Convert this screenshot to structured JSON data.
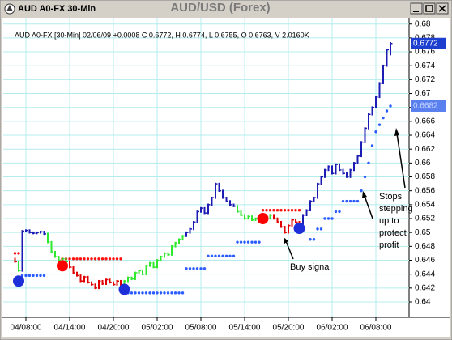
{
  "window_title": "AUD A0-FX 30-Min",
  "chart_data": {
    "type": "ohlc",
    "title": "AUD/USD (Forex)",
    "info": "AUD A0-FX [30-Min] 02/06/09 +0.0008 C 0.6772, H 0.6774, L 0.6755, O 0.6763, V 2.0160K",
    "categories": [
      null,
      null,
      null,
      "04/08:00",
      null,
      null,
      null,
      null,
      null,
      null,
      null,
      null,
      null,
      null,
      null,
      "04/14:00",
      null,
      null,
      null,
      null,
      null,
      null,
      null,
      null,
      null,
      null,
      null,
      "04/20:00",
      null,
      null,
      null,
      null,
      null,
      null,
      null,
      null,
      null,
      null,
      null,
      "05/02:00",
      null,
      null,
      null,
      null,
      null,
      null,
      null,
      null,
      null,
      null,
      null,
      "05/08:00",
      null,
      null,
      null,
      null,
      null,
      null,
      null,
      null,
      null,
      null,
      null,
      "05/14:00",
      null,
      null,
      null,
      null,
      null,
      null,
      null,
      null,
      null,
      null,
      null,
      "05/20:00",
      null,
      null,
      null,
      null,
      null,
      null,
      null,
      null,
      null,
      null,
      null,
      "06/02:00",
      null,
      null,
      null,
      null,
      null,
      null,
      null,
      null,
      null,
      null,
      null,
      "06/08:00",
      null,
      null,
      null,
      null
    ],
    "high": [
      0.64635,
      0.64595,
      0.65035,
      0.65045,
      0.65045,
      0.65015,
      0.65015,
      0.65025,
      0.65025,
      0.64995,
      0.64875,
      0.64735,
      0.64665,
      0.64635,
      0.64635,
      0.64595,
      0.64515,
      0.64435,
      0.64395,
      0.64375,
      0.64375,
      0.64295,
      0.64265,
      0.64315,
      0.64315,
      0.64335,
      0.64335,
      0.64295,
      0.64315,
      0.64315,
      0.64315,
      0.64365,
      0.64365,
      0.64435,
      0.64465,
      0.64465,
      0.64535,
      0.64575,
      0.64575,
      0.64615,
      0.64665,
      0.64715,
      0.64715,
      0.64815,
      0.64865,
      0.64915,
      0.64965,
      0.65015,
      0.65065,
      0.65165,
      0.65315,
      0.65365,
      0.65365,
      0.65415,
      0.65515,
      0.65715,
      0.65715,
      0.65615,
      0.65515,
      0.65465,
      0.65415,
      0.65395,
      0.65315,
      0.65265,
      0.65245,
      0.65245,
      0.65215,
      0.65215,
      0.65195,
      0.65215,
      0.65265,
      0.65265,
      0.65215,
      0.65165,
      0.65095,
      0.65115,
      0.65195,
      0.65195,
      0.65165,
      0.65265,
      0.65335,
      0.65465,
      0.65515,
      0.65715,
      0.65815,
      0.65915,
      0.65965,
      0.65965,
      0.65995,
      0.65995,
      0.65915,
      0.65865,
      0.65915,
      0.66015,
      0.66115,
      0.66315,
      0.66515,
      0.66715,
      0.66815,
      0.66965,
      0.67165,
      0.67415,
      0.67645,
      0.6774
    ],
    "low": [
      0.64565,
      0.64435,
      0.64435,
      0.65005,
      0.64985,
      0.64975,
      0.64975,
      0.64985,
      0.64965,
      0.64845,
      0.64705,
      0.64635,
      0.64585,
      0.64585,
      0.64565,
      0.64485,
      0.64405,
      0.64365,
      0.64285,
      0.64285,
      0.64265,
      0.64235,
      0.64185,
      0.64185,
      0.64245,
      0.64245,
      0.64265,
      0.64235,
      0.64235,
      0.64205,
      0.64205,
      0.64285,
      0.64315,
      0.64315,
      0.64405,
      0.64385,
      0.64385,
      0.64505,
      0.64485,
      0.64485,
      0.64585,
      0.64635,
      0.64665,
      0.64665,
      0.64785,
      0.64835,
      0.64885,
      0.64935,
      0.64985,
      0.65035,
      0.65135,
      0.65285,
      0.65265,
      0.65265,
      0.65385,
      0.65485,
      0.65585,
      0.65485,
      0.65435,
      0.65385,
      0.65365,
      0.65285,
      0.65235,
      0.65185,
      0.65185,
      0.65165,
      0.65165,
      0.65135,
      0.65135,
      0.65165,
      0.65185,
      0.65185,
      0.65135,
      0.65065,
      0.64985,
      0.64985,
      0.65085,
      0.65135,
      0.65035,
      0.65035,
      0.65235,
      0.65305,
      0.65435,
      0.65485,
      0.65685,
      0.65785,
      0.65885,
      0.65835,
      0.65835,
      0.65885,
      0.65835,
      0.65785,
      0.65785,
      0.65885,
      0.65985,
      0.66085,
      0.66285,
      0.66485,
      0.66685,
      0.66785,
      0.66935,
      0.67135,
      0.67385,
      0.6755
    ],
    "close": [
      0.6458,
      0.6445,
      0.6502,
      0.6503,
      0.65,
      0.6499,
      0.65,
      0.6501,
      0.6498,
      0.6486,
      0.6472,
      0.6465,
      0.646,
      0.6462,
      0.6458,
      0.645,
      0.6442,
      0.6438,
      0.643,
      0.6436,
      0.6428,
      0.6425,
      0.642,
      0.643,
      0.6426,
      0.6432,
      0.6428,
      0.6425,
      0.643,
      0.6422,
      0.643,
      0.6435,
      0.6433,
      0.6442,
      0.6445,
      0.644,
      0.6452,
      0.6456,
      0.645,
      0.646,
      0.6465,
      0.647,
      0.6468,
      0.648,
      0.6485,
      0.649,
      0.6495,
      0.65,
      0.6505,
      0.6515,
      0.653,
      0.6535,
      0.6528,
      0.654,
      0.655,
      0.657,
      0.656,
      0.655,
      0.6545,
      0.654,
      0.6538,
      0.653,
      0.6525,
      0.652,
      0.6523,
      0.6518,
      0.652,
      0.6515,
      0.6518,
      0.652,
      0.6525,
      0.652,
      0.6515,
      0.6508,
      0.65,
      0.651,
      0.6518,
      0.6515,
      0.6505,
      0.6525,
      0.6532,
      0.6545,
      0.655,
      0.657,
      0.658,
      0.659,
      0.6595,
      0.6585,
      0.6598,
      0.659,
      0.6585,
      0.658,
      0.659,
      0.66,
      0.661,
      0.663,
      0.665,
      0.667,
      0.668,
      0.6695,
      0.6715,
      0.674,
      0.6763,
      0.6772
    ],
    "bar_colors": [
      "#e00000",
      "#2ee82e",
      "#1c1cb4",
      "#1c1cb4",
      "#1c1cb4",
      "#1c1cb4",
      "#1c1cb4",
      "#1c1cb4",
      "#1c1cb4",
      "#2ee82e",
      "#2ee82e",
      "#2ee82e",
      "#2ee82e",
      "#2ee82e",
      "#2ee82e",
      "#e00000",
      "#e00000",
      "#e00000",
      "#e00000",
      "#e00000",
      "#e00000",
      "#e00000",
      "#e00000",
      "#e00000",
      "#e00000",
      "#e00000",
      "#e00000",
      "#e00000",
      "#e00000",
      "#e00000",
      "#2ee82e",
      "#2ee82e",
      "#2ee82e",
      "#2ee82e",
      "#2ee82e",
      "#2ee82e",
      "#2ee82e",
      "#2ee82e",
      "#2ee82e",
      "#2ee82e",
      "#2ee82e",
      "#2ee82e",
      "#2ee82e",
      "#2ee82e",
      "#2ee82e",
      "#2ee82e",
      "#2ee82e",
      "#1c1cb4",
      "#1c1cb4",
      "#1c1cb4",
      "#1c1cb4",
      "#1c1cb4",
      "#1c1cb4",
      "#1c1cb4",
      "#1c1cb4",
      "#1c1cb4",
      "#1c1cb4",
      "#1c1cb4",
      "#1c1cb4",
      "#1c1cb4",
      "#1c1cb4",
      "#2ee82e",
      "#2ee82e",
      "#2ee82e",
      "#2ee82e",
      "#2ee82e",
      "#2ee82e",
      "#2ee82e",
      "#2ee82e",
      "#2ee82e",
      "#2ee82e",
      "#e00000",
      "#e00000",
      "#e00000",
      "#e00000",
      "#e00000",
      "#e00000",
      "#e00000",
      "#e00000",
      "#1c1cb4",
      "#1c1cb4",
      "#1c1cb4",
      "#1c1cb4",
      "#1c1cb4",
      "#1c1cb4",
      "#1c1cb4",
      "#1c1cb4",
      "#1c1cb4",
      "#1c1cb4",
      "#1c1cb4",
      "#1c1cb4",
      "#1c1cb4",
      "#1c1cb4",
      "#1c1cb4",
      "#1c1cb4",
      "#1c1cb4",
      "#1c1cb4",
      "#1c1cb4",
      "#1c1cb4",
      "#1c1cb4",
      "#1c1cb4",
      "#1c1cb4",
      "#1c1cb4",
      "#1c1cb4",
      "#1c1cb4"
    ],
    "stops": [
      {
        "color": "#ff1010",
        "values": [
          0.647,
          0.647,
          null,
          null,
          null,
          null,
          null,
          null,
          null,
          null,
          null,
          null,
          null,
          0.6462,
          0.6462,
          0.6462,
          0.6462,
          0.6462,
          0.6462,
          0.6462,
          0.6462,
          0.6462,
          0.6462,
          0.6462,
          0.6462,
          0.6462,
          0.6462,
          0.6462,
          0.6462,
          0.6462,
          null,
          null,
          null,
          null,
          null,
          null,
          null,
          null,
          null,
          null,
          null,
          null,
          null,
          null,
          null,
          null,
          null,
          null,
          null,
          null,
          null,
          null,
          null,
          null,
          null,
          null,
          null,
          null,
          null,
          null,
          null,
          null,
          null,
          null,
          null,
          null,
          null,
          null,
          0.6532,
          0.6532,
          0.6532,
          0.6532,
          0.6532,
          0.6532,
          0.6532,
          0.6532,
          0.6532,
          0.6532,
          0.6532,
          null,
          null,
          null,
          null,
          null,
          null,
          null,
          null,
          null,
          null,
          null,
          null,
          null,
          null,
          null,
          null,
          null,
          null,
          null,
          null,
          null,
          null,
          null,
          null,
          null
        ]
      },
      {
        "color": "#2a5cff",
        "values": [
          null,
          null,
          0.6438,
          0.6438,
          0.6438,
          0.6438,
          0.6438,
          0.6438,
          0.6438,
          null,
          null,
          null,
          null,
          null,
          null,
          null,
          null,
          null,
          null,
          null,
          null,
          null,
          null,
          null,
          null,
          null,
          null,
          null,
          null,
          null,
          0.6413,
          0.6413,
          0.6413,
          0.6413,
          0.6413,
          0.6413,
          0.6413,
          0.6413,
          0.6413,
          0.6413,
          0.6413,
          0.6413,
          0.6413,
          0.6413,
          0.6413,
          0.6413,
          0.6413,
          0.6448,
          0.6448,
          0.6448,
          0.6448,
          0.6448,
          0.6448,
          0.6466,
          0.6466,
          0.6466,
          0.6466,
          0.6466,
          0.6466,
          0.6466,
          0.6466,
          0.6486,
          0.6486,
          0.6486,
          0.6486,
          0.6486,
          0.6486,
          0.6486,
          null,
          null,
          null,
          null,
          null,
          null,
          null,
          null,
          null,
          null,
          null,
          null,
          null,
          0.649,
          0.649,
          0.6505,
          0.6505,
          0.652,
          0.652,
          0.652,
          0.653,
          0.653,
          0.6545,
          0.6545,
          0.6545,
          0.6545,
          0.6545,
          0.656,
          0.658,
          0.66,
          0.6625,
          0.6645,
          0.6655,
          0.6665,
          0.6675,
          0.6682
        ]
      }
    ],
    "signals": [
      {
        "at": 1,
        "value": 0.643,
        "color": "#1c2fd8"
      },
      {
        "at": 13,
        "value": 0.6452,
        "color": "#ff0000"
      },
      {
        "at": 30,
        "value": 0.6418,
        "color": "#1c2fd8"
      },
      {
        "at": 68,
        "value": 0.652,
        "color": "#ff0000"
      },
      {
        "at": 78,
        "value": 0.6506,
        "color": "#1c2fd8"
      }
    ],
    "annotations": [
      {
        "text": "Buy signal"
      },
      {
        "lines": [
          "Stops",
          "stepping",
          "up to",
          "protect",
          "profit"
        ]
      }
    ],
    "ylim": [
      0.6386,
      0.6809
    ],
    "yticks": [
      0.64,
      0.642,
      0.644,
      0.646,
      0.648,
      0.65,
      0.652,
      0.654,
      0.656,
      0.658,
      0.66,
      0.662,
      0.664,
      0.666,
      0.668,
      0.67,
      0.672,
      0.674,
      0.676,
      0.678,
      0.68
    ],
    "grid": true,
    "grid_color": "#b4ecec"
  }
}
